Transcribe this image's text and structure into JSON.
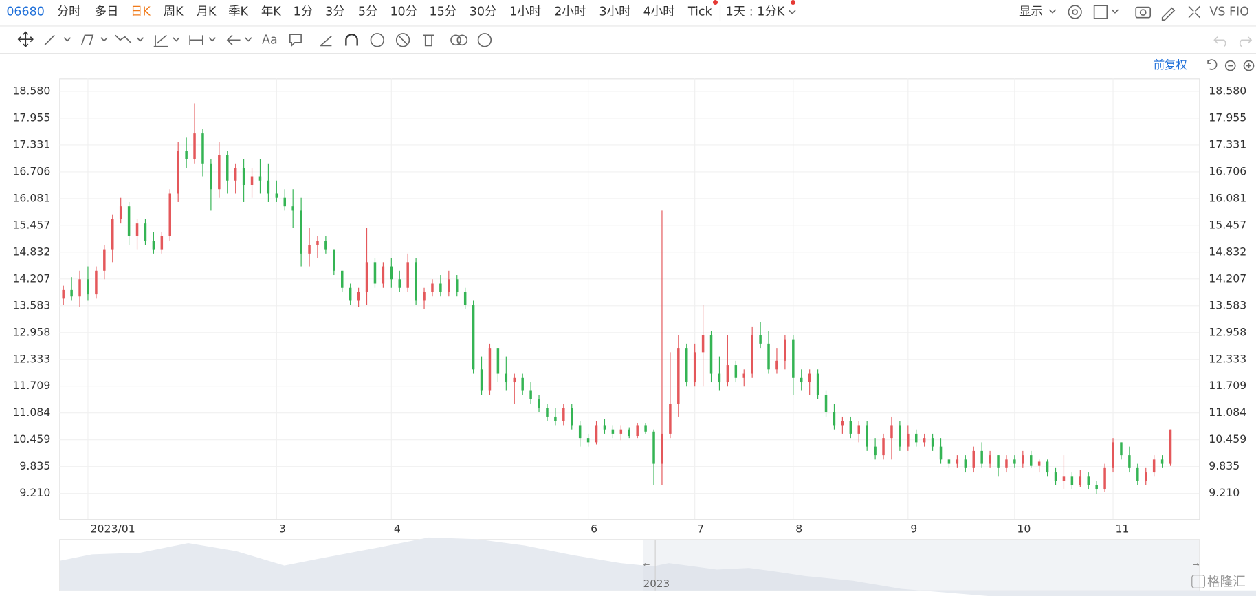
{
  "toolbar": {
    "symbol": "06680",
    "periods": [
      "分时",
      "多日",
      "日K",
      "周K",
      "月K",
      "季K",
      "年K",
      "1分",
      "3分",
      "5分",
      "10分",
      "15分",
      "30分",
      "1小时",
      "2小时",
      "3小时",
      "4小时",
      "Tick",
      "1天 : 1分K"
    ],
    "display": "显示",
    "compare": "VS FIO"
  },
  "drawing_tools": {
    "font": "Aa"
  },
  "adjust": "前复权",
  "navigator": {
    "year": "2023"
  },
  "watermark": "格隆汇",
  "chart_data": {
    "type": "candlestick",
    "up_color": "#e4585b",
    "down_color": "#35b454",
    "grid": true,
    "xlim": [
      -0.5,
      138.5
    ],
    "xticks": [
      {
        "value": 3,
        "label": "2023/01"
      },
      {
        "value": 26,
        "label": "3"
      },
      {
        "value": 40,
        "label": "4"
      },
      {
        "value": 64,
        "label": "6"
      },
      {
        "value": 77,
        "label": "7"
      },
      {
        "value": 89,
        "label": "8"
      },
      {
        "value": 103,
        "label": "9"
      },
      {
        "value": 116,
        "label": "10"
      },
      {
        "value": 128,
        "label": "11"
      }
    ],
    "ylim": [
      8.61,
      18.88
    ],
    "yticks": [
      {
        "value": 9.21,
        "label": "9.210"
      },
      9.835,
      10.459,
      11.084,
      11.709,
      12.333,
      12.958,
      13.583,
      14.207,
      14.832,
      15.457,
      16.081,
      16.706,
      17.331,
      17.955,
      {
        "value": 18.58,
        "label": "18.580"
      }
    ],
    "ohlc": [
      [
        13.75,
        14.05,
        13.6,
        13.95
      ],
      [
        13.95,
        14.25,
        13.7,
        13.8
      ],
      [
        13.8,
        14.4,
        13.55,
        14.2
      ],
      [
        14.2,
        14.5,
        13.7,
        13.85
      ],
      [
        13.85,
        14.5,
        13.75,
        14.4
      ],
      [
        14.4,
        15.0,
        14.2,
        14.9
      ],
      [
        14.9,
        15.7,
        14.6,
        15.6
      ],
      [
        15.6,
        16.1,
        15.5,
        15.9
      ],
      [
        15.9,
        16.0,
        15.0,
        15.2
      ],
      [
        15.2,
        15.6,
        14.9,
        15.5
      ],
      [
        15.5,
        15.6,
        15.0,
        15.1
      ],
      [
        15.1,
        15.3,
        14.8,
        14.9
      ],
      [
        14.9,
        15.3,
        14.8,
        15.2
      ],
      [
        15.2,
        16.3,
        15.1,
        16.2
      ],
      [
        16.2,
        17.4,
        16.0,
        17.2
      ],
      [
        17.2,
        17.5,
        16.8,
        17.0
      ],
      [
        17.0,
        18.3,
        16.9,
        17.6
      ],
      [
        17.6,
        17.7,
        16.6,
        16.9
      ],
      [
        16.9,
        17.0,
        15.8,
        16.3
      ],
      [
        16.3,
        17.4,
        16.1,
        17.1
      ],
      [
        17.1,
        17.2,
        16.2,
        16.5
      ],
      [
        16.5,
        16.9,
        16.2,
        16.8
      ],
      [
        16.8,
        17.0,
        16.0,
        16.4
      ],
      [
        16.4,
        16.8,
        16.1,
        16.6
      ],
      [
        16.6,
        17.0,
        16.2,
        16.5
      ],
      [
        16.5,
        16.9,
        16.0,
        16.2
      ],
      [
        16.2,
        16.5,
        16.0,
        16.1
      ],
      [
        16.1,
        16.3,
        15.8,
        15.9
      ],
      [
        15.9,
        16.3,
        15.4,
        15.8
      ],
      [
        15.8,
        16.1,
        14.5,
        14.8
      ],
      [
        14.8,
        15.4,
        14.5,
        15.0
      ],
      [
        15.0,
        15.2,
        14.7,
        15.1
      ],
      [
        15.1,
        15.2,
        14.8,
        14.9
      ],
      [
        14.9,
        14.9,
        14.3,
        14.4
      ],
      [
        14.4,
        14.4,
        13.9,
        14.0
      ],
      [
        14.0,
        14.1,
        13.6,
        13.7
      ],
      [
        13.7,
        14.0,
        13.55,
        13.9
      ],
      [
        13.9,
        15.4,
        13.6,
        14.6
      ],
      [
        14.6,
        14.7,
        14.0,
        14.1
      ],
      [
        14.1,
        14.6,
        14.0,
        14.5
      ],
      [
        14.5,
        14.7,
        14.0,
        14.2
      ],
      [
        14.2,
        14.4,
        13.9,
        14.0
      ],
      [
        14.0,
        14.8,
        13.9,
        14.6
      ],
      [
        14.6,
        14.7,
        13.6,
        13.7
      ],
      [
        13.7,
        14.0,
        13.5,
        13.9
      ],
      [
        13.9,
        14.2,
        13.8,
        14.1
      ],
      [
        14.1,
        14.3,
        13.8,
        13.9
      ],
      [
        13.9,
        14.4,
        13.8,
        14.2
      ],
      [
        14.2,
        14.3,
        13.8,
        13.9
      ],
      [
        13.9,
        14.0,
        13.5,
        13.6
      ],
      [
        13.6,
        13.7,
        12.0,
        12.1
      ],
      [
        12.1,
        12.4,
        11.5,
        11.6
      ],
      [
        11.6,
        12.7,
        11.5,
        12.6
      ],
      [
        12.6,
        12.6,
        11.8,
        12.0
      ],
      [
        12.0,
        12.4,
        11.6,
        11.8
      ],
      [
        11.8,
        12.0,
        11.3,
        11.9
      ],
      [
        11.9,
        12.0,
        11.5,
        11.6
      ],
      [
        11.6,
        11.8,
        11.3,
        11.4
      ],
      [
        11.4,
        11.5,
        11.1,
        11.2
      ],
      [
        11.2,
        11.3,
        10.9,
        11.0
      ],
      [
        11.0,
        11.2,
        10.8,
        10.9
      ],
      [
        10.9,
        11.3,
        10.8,
        11.2
      ],
      [
        11.2,
        11.3,
        10.7,
        10.8
      ],
      [
        10.8,
        10.9,
        10.3,
        10.5
      ],
      [
        10.5,
        10.6,
        10.3,
        10.4
      ],
      [
        10.4,
        10.9,
        10.35,
        10.8
      ],
      [
        10.8,
        10.95,
        10.6,
        10.7
      ],
      [
        10.7,
        10.8,
        10.5,
        10.6
      ],
      [
        10.6,
        10.8,
        10.45,
        10.7
      ],
      [
        10.7,
        10.75,
        10.5,
        10.55
      ],
      [
        10.55,
        10.85,
        10.5,
        10.8
      ],
      [
        10.8,
        10.85,
        10.6,
        10.65
      ],
      [
        10.65,
        10.7,
        9.4,
        9.9
      ],
      [
        9.9,
        15.8,
        9.4,
        10.6
      ],
      [
        10.6,
        12.5,
        10.5,
        11.3
      ],
      [
        11.3,
        12.9,
        11.0,
        12.6
      ],
      [
        12.6,
        12.7,
        11.7,
        11.8
      ],
      [
        11.8,
        12.7,
        11.7,
        12.5
      ],
      [
        12.5,
        13.6,
        11.7,
        12.9
      ],
      [
        12.9,
        13.0,
        11.8,
        12.0
      ],
      [
        12.0,
        12.4,
        11.6,
        11.8
      ],
      [
        11.8,
        12.9,
        11.7,
        12.2
      ],
      [
        12.2,
        12.3,
        11.8,
        11.9
      ],
      [
        11.9,
        12.1,
        11.7,
        12.0
      ],
      [
        12.0,
        13.1,
        11.9,
        12.9
      ],
      [
        12.9,
        13.2,
        12.6,
        12.7
      ],
      [
        12.7,
        13.0,
        12.0,
        12.1
      ],
      [
        12.1,
        12.6,
        12.0,
        12.3
      ],
      [
        12.3,
        12.9,
        12.1,
        12.8
      ],
      [
        12.8,
        12.9,
        11.5,
        11.9
      ],
      [
        11.9,
        12.1,
        11.6,
        11.8
      ],
      [
        11.8,
        12.1,
        11.5,
        12.0
      ],
      [
        12.0,
        12.1,
        11.4,
        11.5
      ],
      [
        11.5,
        11.6,
        11.0,
        11.1
      ],
      [
        11.1,
        11.3,
        10.7,
        10.8
      ],
      [
        10.8,
        11.0,
        10.6,
        10.9
      ],
      [
        10.9,
        11.0,
        10.5,
        10.6
      ],
      [
        10.6,
        10.9,
        10.4,
        10.8
      ],
      [
        10.8,
        10.9,
        10.2,
        10.3
      ],
      [
        10.3,
        10.5,
        10.0,
        10.1
      ],
      [
        10.1,
        10.6,
        10.0,
        10.5
      ],
      [
        10.5,
        11.0,
        10.0,
        10.8
      ],
      [
        10.8,
        10.9,
        10.2,
        10.3
      ],
      [
        10.3,
        10.8,
        10.2,
        10.6
      ],
      [
        10.6,
        10.7,
        10.3,
        10.4
      ],
      [
        10.4,
        10.6,
        10.3,
        10.5
      ],
      [
        10.5,
        10.6,
        10.2,
        10.3
      ],
      [
        10.3,
        10.5,
        9.9,
        10.0
      ],
      [
        10.0,
        10.0,
        9.8,
        9.9
      ],
      [
        9.9,
        10.1,
        9.8,
        10.0
      ],
      [
        10.0,
        10.1,
        9.7,
        9.8
      ],
      [
        9.8,
        10.3,
        9.7,
        10.2
      ],
      [
        10.2,
        10.4,
        9.8,
        9.9
      ],
      [
        9.9,
        10.2,
        9.8,
        10.1
      ],
      [
        10.1,
        10.1,
        9.6,
        9.8
      ],
      [
        9.8,
        10.1,
        9.7,
        10.0
      ],
      [
        10.0,
        10.1,
        9.8,
        9.9
      ],
      [
        9.9,
        10.2,
        9.8,
        10.1
      ],
      [
        10.1,
        10.2,
        9.8,
        9.85
      ],
      [
        9.85,
        10.0,
        9.7,
        9.95
      ],
      [
        9.95,
        10.0,
        9.6,
        9.7
      ],
      [
        9.7,
        9.8,
        9.4,
        9.5
      ],
      [
        9.5,
        10.1,
        9.3,
        9.6
      ],
      [
        9.6,
        9.7,
        9.3,
        9.4
      ],
      [
        9.4,
        9.75,
        9.35,
        9.6
      ],
      [
        9.6,
        9.7,
        9.3,
        9.4
      ],
      [
        9.4,
        9.5,
        9.2,
        9.3
      ],
      [
        9.3,
        9.9,
        9.25,
        9.8
      ],
      [
        9.8,
        10.5,
        9.7,
        10.4
      ],
      [
        10.4,
        10.4,
        10.0,
        10.1
      ],
      [
        10.1,
        10.3,
        9.7,
        9.8
      ],
      [
        9.8,
        9.9,
        9.4,
        9.5
      ],
      [
        9.5,
        9.8,
        9.4,
        9.7
      ],
      [
        9.7,
        10.1,
        9.6,
        10.0
      ],
      [
        10.0,
        10.1,
        9.8,
        9.9
      ],
      [
        9.9,
        10.7,
        9.85,
        10.7
      ]
    ]
  }
}
